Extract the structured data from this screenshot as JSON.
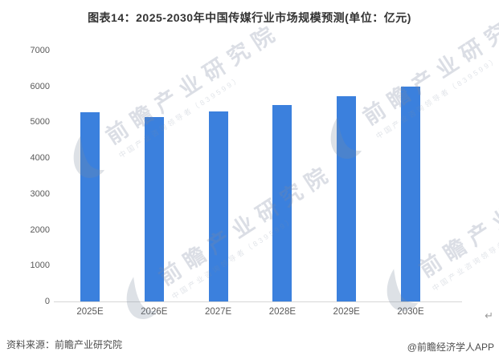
{
  "title": "图表14：2025-2030年中国传媒行业市场规模预测(单位：亿元)",
  "chart_data": {
    "type": "bar",
    "categories": [
      "2025E",
      "2026E",
      "2027E",
      "2028E",
      "2029E",
      "2030E"
    ],
    "values": [
      5280,
      5150,
      5300,
      5490,
      5730,
      5990
    ],
    "title": "图表14：2025-2030年中国传媒行业市场规模预测(单位：亿元)",
    "xlabel": "",
    "ylabel": "",
    "unit": "亿元",
    "ylim": [
      0,
      7000
    ],
    "ytick_step": 1000,
    "grid": false,
    "legend": null,
    "bar_color": "#3b80dd"
  },
  "watermark": {
    "brand": "前瞻产业研究院",
    "subtext": "中国产业咨询领导者（839599）"
  },
  "footer": {
    "source": "资料来源：前瞻产业研究院",
    "credit": "@前瞻经济学人APP"
  },
  "misc": {
    "return_mark": "↵"
  },
  "colors": {
    "bar": "#3b80dd",
    "axis_line": "#d6d6d6",
    "tick_text": "#595959",
    "title_text": "#333333",
    "footer_text": "#4d4d4d",
    "background": "#ffffff"
  }
}
